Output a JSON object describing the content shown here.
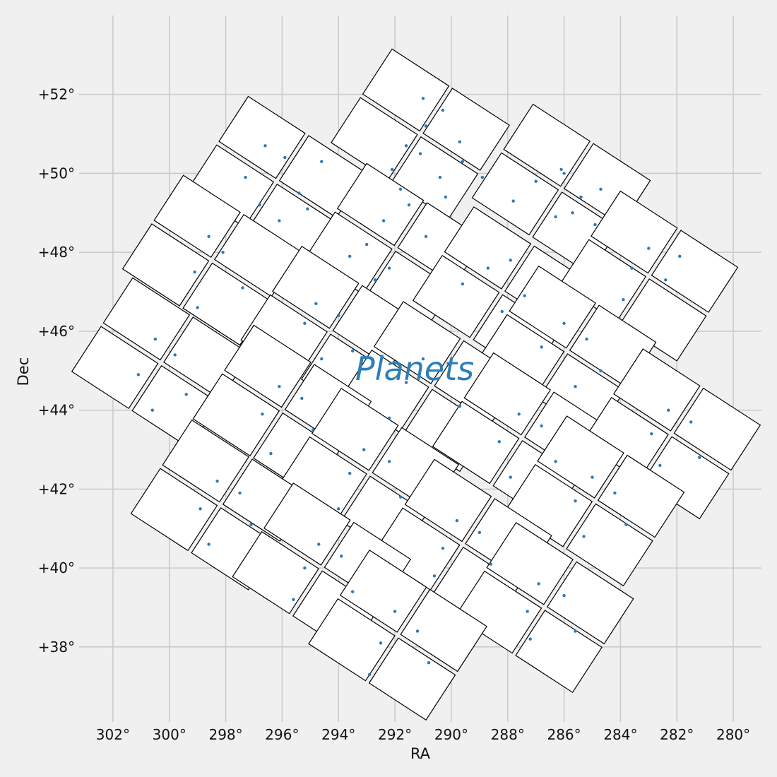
{
  "chart_data": {
    "type": "scatter",
    "title": "",
    "xlabel": "RA",
    "ylabel": "Dec",
    "xlim": [
      303.2,
      279.0
    ],
    "ylim": [
      36.1,
      54.0
    ],
    "x_ticks": [
      302,
      300,
      298,
      296,
      294,
      292,
      290,
      288,
      286,
      284,
      282,
      280
    ],
    "x_tick_labels": [
      "302°",
      "300°",
      "298°",
      "296°",
      "294°",
      "292°",
      "290°",
      "288°",
      "286°",
      "284°",
      "282°",
      "280°"
    ],
    "y_ticks": [
      38,
      40,
      42,
      44,
      46,
      48,
      50,
      52
    ],
    "y_tick_labels": [
      "+38°",
      "+40°",
      "+42°",
      "+44°",
      "+46°",
      "+48°",
      "+50°",
      "+52°"
    ],
    "grid": true,
    "annotation": {
      "text": "Planets",
      "x": 291.3,
      "y": 45.05
    },
    "colors": {
      "points": "#2a7ab9",
      "annotation": "#2d7fb8",
      "ccd_edge": "#000000",
      "ccd_fill": "#ffffff",
      "grid": "#cbcbcb",
      "background": "#f0f0f0"
    },
    "field_of_view": {
      "description_type": "ccd-modules",
      "rotation_deg": 33,
      "modules": [
        {
          "ra": 291.1,
          "dec": 51.0
        },
        {
          "ra": 286.1,
          "dec": 49.6
        },
        {
          "ra": 296.2,
          "dec": 49.8
        },
        {
          "ra": 292.0,
          "dec": 48.1
        },
        {
          "ra": 288.2,
          "dec": 47.0
        },
        {
          "ra": 283.0,
          "dec": 47.4
        },
        {
          "ra": 298.5,
          "dec": 47.8
        },
        {
          "ra": 294.3,
          "dec": 46.0
        },
        {
          "ra": 285.9,
          "dec": 45.5
        },
        {
          "ra": 300.3,
          "dec": 45.2
        },
        {
          "ra": 290.7,
          "dec": 44.6
        },
        {
          "ra": 296.0,
          "dec": 44.0
        },
        {
          "ra": 287.5,
          "dec": 43.3
        },
        {
          "ra": 282.2,
          "dec": 43.4
        },
        {
          "ra": 292.9,
          "dec": 42.4
        },
        {
          "ra": 298.2,
          "dec": 41.6
        },
        {
          "ra": 284.9,
          "dec": 41.7
        },
        {
          "ra": 289.6,
          "dec": 40.6
        },
        {
          "ra": 294.6,
          "dec": 40.0
        },
        {
          "ra": 286.7,
          "dec": 39.0
        },
        {
          "ra": 291.9,
          "dec": 38.3
        }
      ]
    },
    "series": [
      {
        "x": [
          290.3,
          290.9,
          291.6,
          292.1,
          289.6,
          290.4,
          291.1,
          291.8,
          288.9,
          289.7,
          290.2,
          291.0,
          286.1,
          287.0,
          287.8,
          285.4,
          286.3,
          284.7,
          286.0,
          284.9,
          285.7,
          296.6,
          297.3,
          295.9,
          295.1,
          296.1,
          294.6,
          295.4,
          296.8,
          292.4,
          293.0,
          291.5,
          292.2,
          293.6,
          290.9,
          292.7,
          288.7,
          289.6,
          287.9,
          288.2,
          287.4,
          283.0,
          283.6,
          282.4,
          281.9,
          283.9,
          298.6,
          299.1,
          298.1,
          297.4,
          299.0,
          294.8,
          295.2,
          294.0,
          293.5,
          294.6,
          286.0,
          286.8,
          285.2,
          284.7,
          285.6,
          300.5,
          301.1,
          299.8,
          299.4,
          300.6,
          291.0,
          291.6,
          290.1,
          289.7,
          292.2,
          296.1,
          296.7,
          295.3,
          294.9,
          296.4,
          287.6,
          288.3,
          286.8,
          286.3,
          287.9,
          282.3,
          282.9,
          281.5,
          281.2,
          282.6,
          293.1,
          293.6,
          292.2,
          291.8,
          294.0,
          298.3,
          298.9,
          297.5,
          297.1,
          298.6,
          285.0,
          285.6,
          284.2,
          283.8,
          285.3,
          289.8,
          290.3,
          289.0,
          288.6,
          290.6,
          294.7,
          295.2,
          293.9,
          293.5,
          295.6,
          286.9,
          287.3,
          286.0,
          285.6,
          287.2,
          292.0,
          292.5,
          291.2,
          290.8,
          292.9
        ],
        "y": [
          51.6,
          51.2,
          50.7,
          50.1,
          50.3,
          49.9,
          50.5,
          49.6,
          49.9,
          50.8,
          49.4,
          51.9,
          50.1,
          49.8,
          49.3,
          49.4,
          48.9,
          49.6,
          50.0,
          48.7,
          49.0,
          50.7,
          49.9,
          50.4,
          49.1,
          48.8,
          50.3,
          49.5,
          49.2,
          48.8,
          48.2,
          49.2,
          47.6,
          47.9,
          48.4,
          47.3,
          47.6,
          47.2,
          47.8,
          46.5,
          46.9,
          48.1,
          47.6,
          47.3,
          47.9,
          46.8,
          48.4,
          47.5,
          48.0,
          47.1,
          46.6,
          46.7,
          46.2,
          46.4,
          45.5,
          45.3,
          46.2,
          45.6,
          45.8,
          45.0,
          44.6,
          45.8,
          44.9,
          45.4,
          44.4,
          44.0,
          45.3,
          44.7,
          44.9,
          44.1,
          43.8,
          44.6,
          43.9,
          44.3,
          43.5,
          42.9,
          43.9,
          43.2,
          43.6,
          42.7,
          42.3,
          44.0,
          43.4,
          43.7,
          42.8,
          42.6,
          43.0,
          42.4,
          42.7,
          41.8,
          41.5,
          42.2,
          41.5,
          41.9,
          41.1,
          40.6,
          42.3,
          41.7,
          41.9,
          41.1,
          40.8,
          41.2,
          40.5,
          40.9,
          40.1,
          39.8,
          40.6,
          40.0,
          40.3,
          39.4,
          39.2,
          39.6,
          38.9,
          39.3,
          38.4,
          38.2,
          38.9,
          38.1,
          38.4,
          37.6,
          37.3
        ]
      }
    ]
  }
}
